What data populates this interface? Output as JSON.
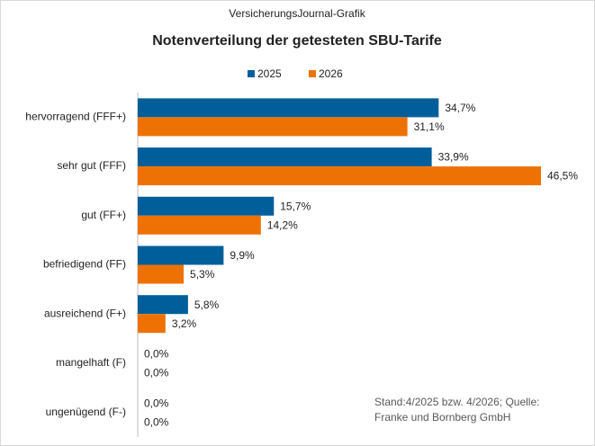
{
  "chart_data": {
    "type": "bar",
    "orientation": "horizontal",
    "source_label": "VersicherungsJournal-Grafik",
    "title": "Notenverteilung der getesteten SBU-Tarife",
    "categories": [
      "hervorragend (FFF+)",
      "sehr gut (FFF)",
      "gut (FF+)",
      "befriedigend (FF)",
      "ausreichend (F+)",
      "mangelhaft (F)",
      "ungenügend (F-)"
    ],
    "series": [
      {
        "name": "2025",
        "color": "#005f9a",
        "values": [
          34.7,
          33.9,
          15.7,
          9.9,
          5.8,
          0,
          0
        ],
        "value_labels": [
          "34,7%",
          "33,9%",
          "15,7%",
          "9,9%",
          "5,8%",
          "0,0%",
          "0,0%"
        ]
      },
      {
        "name": "2026",
        "color": "#ee7203",
        "values": [
          31.1,
          46.5,
          14.2,
          5.3,
          3.2,
          0,
          0
        ],
        "value_labels": [
          "31,1%",
          "46,5%",
          "14,2%",
          "5,3%",
          "3,2%",
          "0,0%",
          "0,0%"
        ]
      }
    ],
    "legend": "top",
    "note": [
      "Stand:4/2025  bzw. 4/2026; Quelle:",
      "Franke und Bornberg GmbH"
    ]
  }
}
